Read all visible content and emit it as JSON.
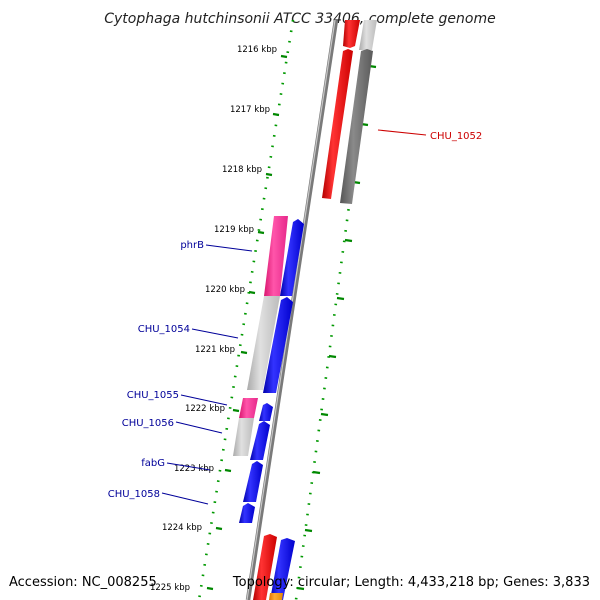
{
  "title": "Cytophaga hutchinsonii ATCC 33406, complete genome",
  "ticks": [
    {
      "label": "1216 kbp",
      "kbp": 1216
    },
    {
      "label": "1217 kbp",
      "kbp": 1217
    },
    {
      "label": "1218 kbp",
      "kbp": 1218
    },
    {
      "label": "1219 kbp",
      "kbp": 1219
    },
    {
      "label": "1220 kbp",
      "kbp": 1220
    },
    {
      "label": "1221 kbp",
      "kbp": 1221
    },
    {
      "label": "1222 kbp",
      "kbp": 1222
    },
    {
      "label": "1223 kbp",
      "kbp": 1223
    },
    {
      "label": "1224 kbp",
      "kbp": 1224
    },
    {
      "label": "1225 kbp",
      "kbp": 1225
    }
  ],
  "gene_labels": [
    {
      "name": "CHU_1052",
      "color": "#cc0000"
    },
    {
      "name": "phrB",
      "color": "#000099"
    },
    {
      "name": "CHU_1054",
      "color": "#000099"
    },
    {
      "name": "CHU_1055",
      "color": "#000099"
    },
    {
      "name": "CHU_1056",
      "color": "#000099"
    },
    {
      "name": "fabG",
      "color": "#000099"
    },
    {
      "name": "CHU_1058",
      "color": "#000099"
    }
  ],
  "footer": {
    "accession": "Accession: NC_008255",
    "info": "Topology: circular; Length: 4,433,218 bp; Genes: 3,833"
  },
  "colors": {
    "forward_cds": "#ff0000",
    "reverse_cds": "#0000ff",
    "rna_pink": "#ff3399",
    "backbone": "#888888",
    "tick_green": "#009900"
  }
}
